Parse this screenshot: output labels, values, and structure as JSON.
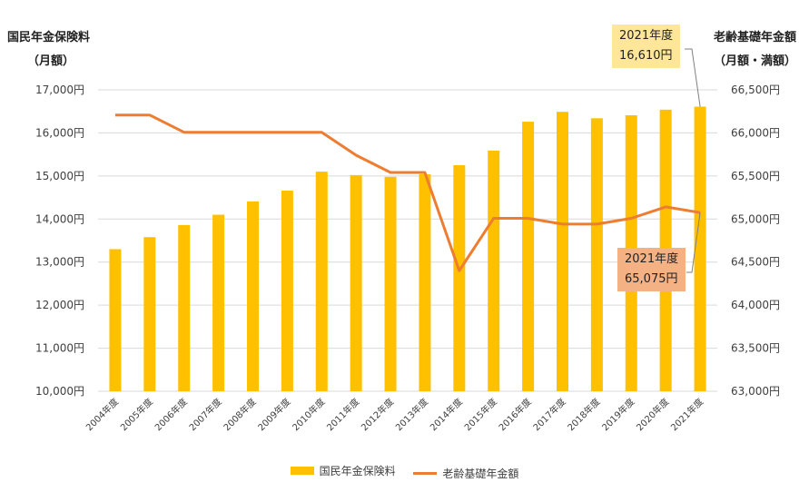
{
  "left_axis_title": "国民年金保険料",
  "left_axis_unit": "（月額）",
  "right_axis_title": "老齢基礎年金額",
  "right_axis_unit": "（月額・満額）",
  "callout_premium": {
    "year": "2021年度",
    "value": "16,610円"
  },
  "callout_pension": {
    "year": "2021年度",
    "value": "65,075円"
  },
  "colors": {
    "bar": "#FFC000",
    "line": "#ED7D31",
    "callout_premium_bg": "#FFE699",
    "callout_pension_bg": "#F4B183",
    "grid": "#D9D9D9"
  },
  "chart_data": {
    "type": "bar+line",
    "categories": [
      "2004年度",
      "2005年度",
      "2006年度",
      "2007年度",
      "2008年度",
      "2009年度",
      "2010年度",
      "2011年度",
      "2012年度",
      "2013年度",
      "2014年度",
      "2015年度",
      "2016年度",
      "2017年度",
      "2018年度",
      "2019年度",
      "2020年度",
      "2021年度"
    ],
    "left_ticks": [
      "10,000円",
      "11,000円",
      "12,000円",
      "13,000円",
      "14,000円",
      "15,000円",
      "16,000円",
      "17,000円"
    ],
    "right_ticks": [
      "63,000円",
      "63,500円",
      "64,000円",
      "64,500円",
      "65,000円",
      "65,500円",
      "66,000円",
      "66,500円"
    ],
    "ylim_left": [
      10000,
      17000
    ],
    "ylim_right": [
      63000,
      66500
    ],
    "grid": true,
    "legend_position": "bottom",
    "series": [
      {
        "name": "国民年金保険料",
        "type": "bar",
        "axis": "left",
        "values": [
          13300,
          13580,
          13860,
          14100,
          14410,
          14660,
          15100,
          15020,
          14980,
          15040,
          15250,
          15590,
          16260,
          16490,
          16340,
          16410,
          16540,
          16610
        ]
      },
      {
        "name": "老齢基礎年金額",
        "type": "line",
        "axis": "right",
        "values": [
          66208,
          66208,
          66008,
          66008,
          66008,
          66008,
          66008,
          65741,
          65541,
          65541,
          64400,
          65008,
          65008,
          64941,
          64941,
          65008,
          65141,
          65075
        ]
      }
    ]
  }
}
